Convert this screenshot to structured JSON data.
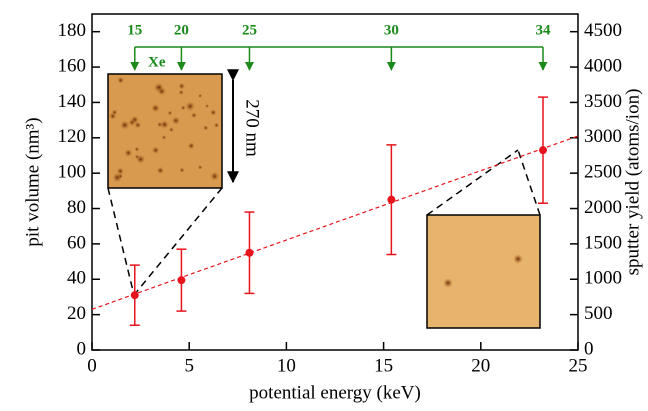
{
  "chart_data": {
    "type": "scatter",
    "xlabel": "potential energy (keV)",
    "ylabel": "pit volume (nm³)",
    "y2label": "sputter yield (atoms/ion)",
    "xlim": [
      0,
      25
    ],
    "xticks": [
      0,
      5,
      10,
      15,
      20,
      25
    ],
    "ylim": [
      0,
      190
    ],
    "yticks": [
      0,
      20,
      40,
      60,
      80,
      100,
      120,
      140,
      160,
      180
    ],
    "y2lim": [
      0,
      4750
    ],
    "y2ticks": [
      0,
      500,
      1000,
      1500,
      2000,
      2500,
      3000,
      3500,
      4000,
      4500
    ],
    "series": [
      {
        "color": "#e8141c",
        "x": [
          2.2,
          4.6,
          8.1,
          15.4,
          23.2
        ],
        "values": [
          31,
          39.5,
          55,
          85,
          113
        ],
        "errors": [
          17,
          17.5,
          23,
          31,
          30
        ]
      }
    ],
    "fit_line": {
      "color": "#e8141c",
      "x": [
        0,
        25
      ],
      "values": [
        23,
        121
      ]
    },
    "charge_states": {
      "label": "Xe",
      "color": "#1a8a1a",
      "labels": [
        15,
        20,
        25,
        30,
        34
      ],
      "x": [
        2.2,
        4.6,
        8.1,
        15.4,
        23.2
      ]
    },
    "scale_label": "270 nm"
  }
}
